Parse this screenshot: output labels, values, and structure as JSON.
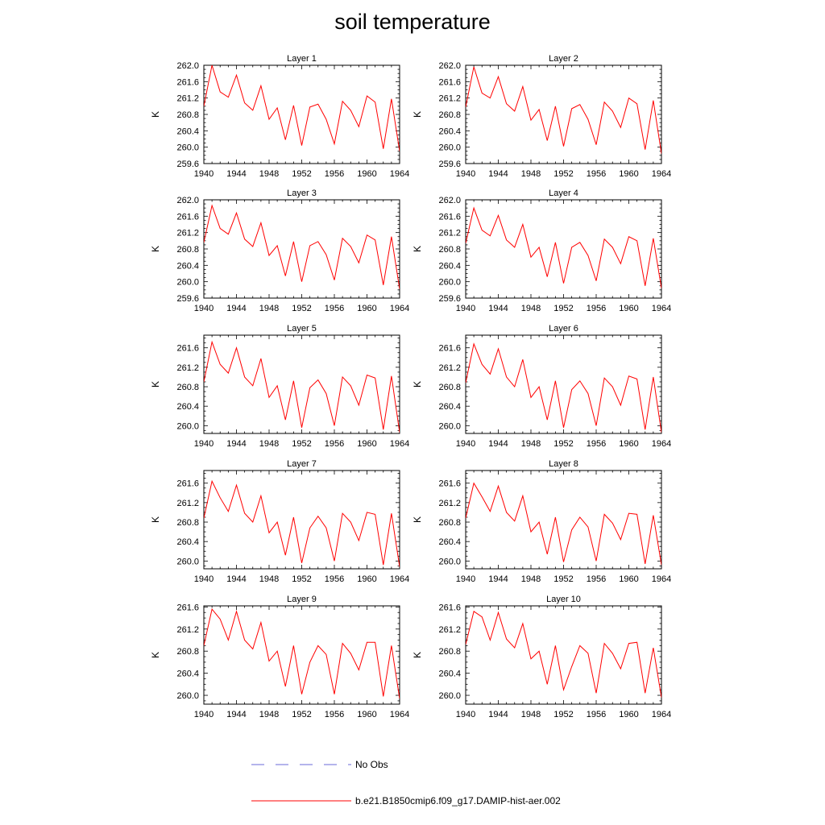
{
  "title": "soil temperature",
  "colors": {
    "model": "#ff0000",
    "obs": "#6a6ad8",
    "axis": "#000000"
  },
  "legend": [
    {
      "label": "No Obs",
      "style": "dashed",
      "color": "#6a6ad8"
    },
    {
      "label": "b.e21.B1850cmip6.f09_g17.DAMIP-hist-aer.002",
      "style": "solid",
      "color": "#ff0000"
    }
  ],
  "chart_data": [
    {
      "type": "line",
      "title": "Layer 1",
      "ylabel": "K",
      "xlim": [
        1940,
        1964
      ],
      "ylim": [
        259.6,
        262.0
      ],
      "xticks": [
        "1940",
        "1944",
        "1948",
        "1952",
        "1956",
        "1960",
        "1964"
      ],
      "yticks": [
        "262.0",
        "261.6",
        "261.2",
        "260.8",
        "260.4",
        "260.0",
        "259.6"
      ],
      "x": [
        1940,
        1941,
        1942,
        1943,
        1944,
        1945,
        1946,
        1947,
        1948,
        1949,
        1950,
        1951,
        1952,
        1953,
        1954,
        1955,
        1956,
        1957,
        1958,
        1959,
        1960,
        1961,
        1962,
        1963,
        1964
      ],
      "series": [
        {
          "name": "b.e21.B1850cmip6.f09_g17.DAMIP-hist-aer.002",
          "values": [
            261.0,
            262.0,
            261.35,
            261.22,
            261.76,
            261.08,
            260.9,
            261.5,
            260.68,
            260.96,
            260.18,
            261.02,
            260.04,
            260.98,
            261.05,
            260.68,
            260.08,
            261.12,
            260.9,
            260.5,
            261.25,
            261.1,
            259.96,
            261.18,
            259.9
          ]
        }
      ]
    },
    {
      "type": "line",
      "title": "Layer 2",
      "ylabel": "K",
      "xlim": [
        1940,
        1964
      ],
      "ylim": [
        259.6,
        262.0
      ],
      "xticks": [
        "1940",
        "1944",
        "1948",
        "1952",
        "1956",
        "1960",
        "1964"
      ],
      "yticks": [
        "262.0",
        "261.6",
        "261.2",
        "260.8",
        "260.4",
        "260.0",
        "259.6"
      ],
      "x": [
        1940,
        1941,
        1942,
        1943,
        1944,
        1945,
        1946,
        1947,
        1948,
        1949,
        1950,
        1951,
        1952,
        1953,
        1954,
        1955,
        1956,
        1957,
        1958,
        1959,
        1960,
        1961,
        1962,
        1963,
        1964
      ],
      "series": [
        {
          "name": "b.e21.B1850cmip6.f09_g17.DAMIP-hist-aer.002",
          "values": [
            260.98,
            261.96,
            261.32,
            261.2,
            261.72,
            261.06,
            260.88,
            261.48,
            260.66,
            260.92,
            260.16,
            261.0,
            260.02,
            260.94,
            261.04,
            260.68,
            260.06,
            261.1,
            260.88,
            260.48,
            261.2,
            261.06,
            259.94,
            261.14,
            259.84
          ]
        }
      ]
    },
    {
      "type": "line",
      "title": "Layer 3",
      "ylabel": "K",
      "xlim": [
        1940,
        1964
      ],
      "ylim": [
        259.6,
        262.0
      ],
      "xticks": [
        "1940",
        "1944",
        "1948",
        "1952",
        "1956",
        "1960",
        "1964"
      ],
      "yticks": [
        "262.0",
        "261.6",
        "261.2",
        "260.8",
        "260.4",
        "260.0",
        "259.6"
      ],
      "x": [
        1940,
        1941,
        1942,
        1943,
        1944,
        1945,
        1946,
        1947,
        1948,
        1949,
        1950,
        1951,
        1952,
        1953,
        1954,
        1955,
        1956,
        1957,
        1958,
        1959,
        1960,
        1961,
        1962,
        1963,
        1964
      ],
      "series": [
        {
          "name": "b.e21.B1850cmip6.f09_g17.DAMIP-hist-aer.002",
          "values": [
            260.96,
            261.86,
            261.3,
            261.16,
            261.68,
            261.04,
            260.86,
            261.44,
            260.64,
            260.88,
            260.14,
            260.98,
            260.0,
            260.88,
            260.98,
            260.66,
            260.04,
            261.06,
            260.86,
            260.46,
            261.14,
            261.02,
            259.92,
            261.1,
            259.82
          ]
        }
      ]
    },
    {
      "type": "line",
      "title": "Layer 4",
      "ylabel": "K",
      "xlim": [
        1940,
        1964
      ],
      "ylim": [
        259.6,
        262.0
      ],
      "xticks": [
        "1940",
        "1944",
        "1948",
        "1952",
        "1956",
        "1960",
        "1964"
      ],
      "yticks": [
        "262.0",
        "261.6",
        "261.2",
        "260.8",
        "260.4",
        "260.0",
        "259.6"
      ],
      "x": [
        1940,
        1941,
        1942,
        1943,
        1944,
        1945,
        1946,
        1947,
        1948,
        1949,
        1950,
        1951,
        1952,
        1953,
        1954,
        1955,
        1956,
        1957,
        1958,
        1959,
        1960,
        1961,
        1962,
        1963,
        1964
      ],
      "series": [
        {
          "name": "b.e21.B1850cmip6.f09_g17.DAMIP-hist-aer.002",
          "values": [
            260.94,
            261.8,
            261.26,
            261.12,
            261.62,
            261.02,
            260.84,
            261.4,
            260.6,
            260.84,
            260.12,
            260.96,
            259.96,
            260.84,
            260.96,
            260.64,
            260.02,
            261.04,
            260.84,
            260.44,
            261.1,
            261.0,
            259.9,
            261.06,
            259.84
          ]
        }
      ]
    },
    {
      "type": "line",
      "title": "Layer 5",
      "ylabel": "K",
      "xlim": [
        1940,
        1964
      ],
      "ylim": [
        259.84,
        261.86
      ],
      "xticks": [
        "1940",
        "1944",
        "1948",
        "1952",
        "1956",
        "1960",
        "1964"
      ],
      "yticks": [
        "261.6",
        "261.2",
        "260.8",
        "260.4",
        "260.0"
      ],
      "x": [
        1940,
        1941,
        1942,
        1943,
        1944,
        1945,
        1946,
        1947,
        1948,
        1949,
        1950,
        1951,
        1952,
        1953,
        1954,
        1955,
        1956,
        1957,
        1958,
        1959,
        1960,
        1961,
        1962,
        1963,
        1964
      ],
      "series": [
        {
          "name": "b.e21.B1850cmip6.f09_g17.DAMIP-hist-aer.002",
          "values": [
            260.9,
            261.72,
            261.26,
            261.08,
            261.6,
            261.0,
            260.82,
            261.38,
            260.58,
            260.82,
            260.12,
            260.92,
            259.96,
            260.78,
            260.94,
            260.66,
            260.0,
            261.0,
            260.82,
            260.42,
            261.04,
            260.98,
            259.92,
            261.02,
            259.86
          ]
        }
      ]
    },
    {
      "type": "line",
      "title": "Layer 6",
      "ylabel": "K",
      "xlim": [
        1940,
        1964
      ],
      "ylim": [
        259.84,
        261.86
      ],
      "xticks": [
        "1940",
        "1944",
        "1948",
        "1952",
        "1956",
        "1960",
        "1964"
      ],
      "yticks": [
        "261.6",
        "261.2",
        "260.8",
        "260.4",
        "260.0"
      ],
      "x": [
        1940,
        1941,
        1942,
        1943,
        1944,
        1945,
        1946,
        1947,
        1948,
        1949,
        1950,
        1951,
        1952,
        1953,
        1954,
        1955,
        1956,
        1957,
        1958,
        1959,
        1960,
        1961,
        1962,
        1963,
        1964
      ],
      "series": [
        {
          "name": "b.e21.B1850cmip6.f09_g17.DAMIP-hist-aer.002",
          "values": [
            260.88,
            261.68,
            261.26,
            261.06,
            261.58,
            261.0,
            260.8,
            261.36,
            260.58,
            260.8,
            260.12,
            260.92,
            259.96,
            260.74,
            260.92,
            260.66,
            260.0,
            260.98,
            260.8,
            260.42,
            261.02,
            260.96,
            259.92,
            261.0,
            259.86
          ]
        }
      ]
    },
    {
      "type": "line",
      "title": "Layer 7",
      "ylabel": "K",
      "xlim": [
        1940,
        1964
      ],
      "ylim": [
        259.84,
        261.86
      ],
      "xticks": [
        "1940",
        "1944",
        "1948",
        "1952",
        "1956",
        "1960",
        "1964"
      ],
      "yticks": [
        "261.6",
        "261.2",
        "260.8",
        "260.4",
        "260.0"
      ],
      "x": [
        1940,
        1941,
        1942,
        1943,
        1944,
        1945,
        1946,
        1947,
        1948,
        1949,
        1950,
        1951,
        1952,
        1953,
        1954,
        1955,
        1956,
        1957,
        1958,
        1959,
        1960,
        1961,
        1962,
        1963,
        1964
      ],
      "series": [
        {
          "name": "b.e21.B1850cmip6.f09_g17.DAMIP-hist-aer.002",
          "values": [
            260.88,
            261.64,
            261.3,
            261.02,
            261.56,
            260.98,
            260.8,
            261.34,
            260.58,
            260.8,
            260.12,
            260.9,
            259.96,
            260.68,
            260.92,
            260.68,
            260.0,
            260.98,
            260.8,
            260.42,
            261.0,
            260.96,
            259.92,
            260.98,
            259.88
          ]
        }
      ]
    },
    {
      "type": "line",
      "title": "Layer 8",
      "ylabel": "K",
      "xlim": [
        1940,
        1964
      ],
      "ylim": [
        259.84,
        261.86
      ],
      "xticks": [
        "1940",
        "1944",
        "1948",
        "1952",
        "1956",
        "1960",
        "1964"
      ],
      "yticks": [
        "261.6",
        "261.2",
        "260.8",
        "260.4",
        "260.0"
      ],
      "x": [
        1940,
        1941,
        1942,
        1943,
        1944,
        1945,
        1946,
        1947,
        1948,
        1949,
        1950,
        1951,
        1952,
        1953,
        1954,
        1955,
        1956,
        1957,
        1958,
        1959,
        1960,
        1961,
        1962,
        1963,
        1964
      ],
      "series": [
        {
          "name": "b.e21.B1850cmip6.f09_g17.DAMIP-hist-aer.002",
          "values": [
            260.88,
            261.6,
            261.32,
            261.02,
            261.54,
            261.0,
            260.82,
            261.34,
            260.6,
            260.8,
            260.14,
            260.9,
            259.98,
            260.64,
            260.9,
            260.7,
            260.0,
            260.96,
            260.78,
            260.44,
            260.98,
            260.96,
            259.94,
            260.94,
            259.92
          ]
        }
      ]
    },
    {
      "type": "line",
      "title": "Layer 9",
      "ylabel": "K",
      "xlim": [
        1940,
        1964
      ],
      "ylim": [
        259.84,
        261.62
      ],
      "xticks": [
        "1940",
        "1944",
        "1948",
        "1952",
        "1956",
        "1960",
        "1964"
      ],
      "yticks": [
        "261.6",
        "261.2",
        "260.8",
        "260.4",
        "260.0"
      ],
      "x": [
        1940,
        1941,
        1942,
        1943,
        1944,
        1945,
        1946,
        1947,
        1948,
        1949,
        1950,
        1951,
        1952,
        1953,
        1954,
        1955,
        1956,
        1957,
        1958,
        1959,
        1960,
        1961,
        1962,
        1963,
        1964
      ],
      "series": [
        {
          "name": "b.e21.B1850cmip6.f09_g17.DAMIP-hist-aer.002",
          "values": [
            260.9,
            261.56,
            261.38,
            261.0,
            261.52,
            261.0,
            260.84,
            261.32,
            260.62,
            260.8,
            260.16,
            260.9,
            260.02,
            260.6,
            260.9,
            260.74,
            260.02,
            260.94,
            260.76,
            260.46,
            260.96,
            260.96,
            259.98,
            260.9,
            259.94
          ]
        }
      ]
    },
    {
      "type": "line",
      "title": "Layer 10",
      "ylabel": "K",
      "xlim": [
        1940,
        1964
      ],
      "ylim": [
        259.84,
        261.62
      ],
      "xticks": [
        "1940",
        "1944",
        "1948",
        "1952",
        "1956",
        "1960",
        "1964"
      ],
      "yticks": [
        "261.6",
        "261.2",
        "260.8",
        "260.4",
        "260.0"
      ],
      "x": [
        1940,
        1941,
        1942,
        1943,
        1944,
        1945,
        1946,
        1947,
        1948,
        1949,
        1950,
        1951,
        1952,
        1953,
        1954,
        1955,
        1956,
        1957,
        1958,
        1959,
        1960,
        1961,
        1962,
        1963,
        1964
      ],
      "series": [
        {
          "name": "b.e21.B1850cmip6.f09_g17.DAMIP-hist-aer.002",
          "values": [
            260.92,
            261.52,
            261.42,
            261.0,
            261.5,
            261.02,
            260.86,
            261.3,
            260.66,
            260.8,
            260.2,
            260.9,
            260.1,
            260.52,
            260.9,
            260.76,
            260.04,
            260.94,
            260.76,
            260.48,
            260.94,
            260.96,
            260.04,
            260.86,
            259.96
          ]
        }
      ]
    }
  ]
}
